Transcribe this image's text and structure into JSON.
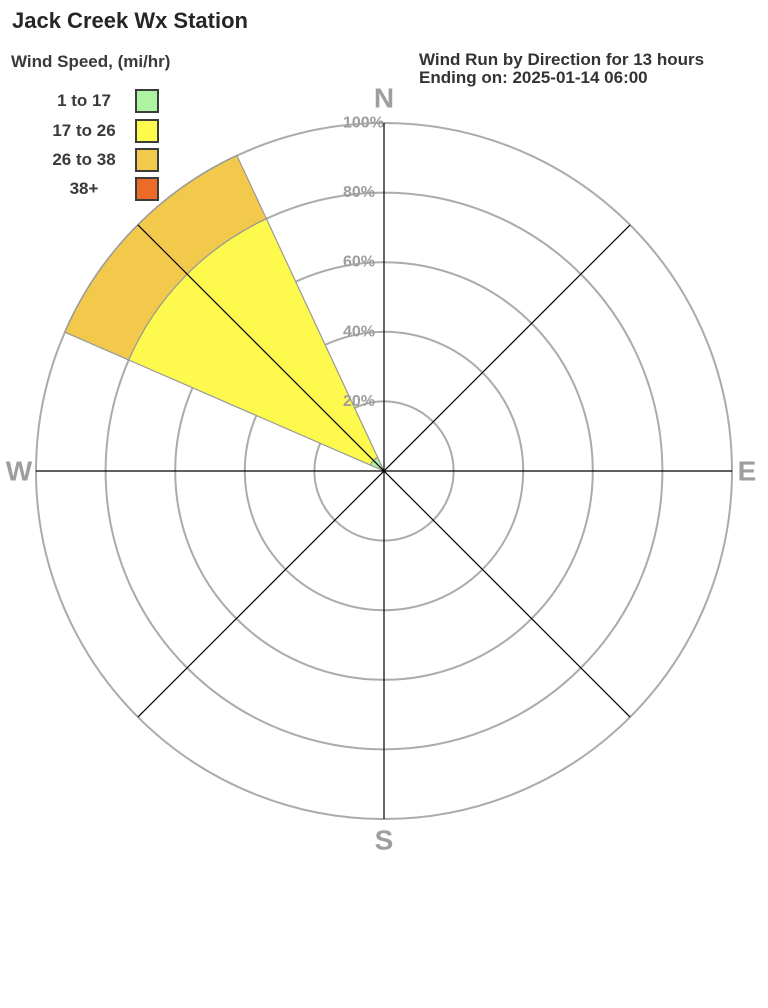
{
  "page": {
    "title": "Jack Creek Wx Station"
  },
  "header": {
    "line1": "Wind Run by Direction for 13 hours",
    "line2": "Ending on: 2025-01-14 06:00"
  },
  "legend": {
    "title": "Wind Speed, (mi/hr)",
    "items": [
      {
        "label": "1 to 17",
        "color": "#aef3a2"
      },
      {
        "label": "17 to 26",
        "color": "#fdf94d"
      },
      {
        "label": "26 to 38",
        "color": "#f2c94b"
      },
      {
        "label": "38+",
        "color": "#ec6b28"
      }
    ]
  },
  "chart_data": {
    "type": "windrose",
    "title": "Jack Creek Wx Station",
    "subtitle": "Wind Run by Direction for 13 hours Ending on: 2025-01-14 06:00",
    "rings": [
      {
        "pct": 20,
        "label": "20%"
      },
      {
        "pct": 40,
        "label": "40%"
      },
      {
        "pct": 60,
        "label": "60%"
      },
      {
        "pct": 80,
        "label": "80%"
      },
      {
        "pct": 100,
        "label": "100%"
      }
    ],
    "compass_labels": {
      "n": "N",
      "e": "E",
      "s": "S",
      "w": "W"
    },
    "grid": {
      "ring_color": "#ababab",
      "axis_color": "#000000",
      "label_color": "#9e9e9e"
    },
    "outline_color": "#999999",
    "sectors": [
      {
        "direction": "NW",
        "from_azimuth_deg": 293.5,
        "to_azimuth_deg": 335.0,
        "bands": [
          {
            "speed": "1 to 17",
            "color": "#aef3a2",
            "from_pct": 0,
            "to_pct": 4.3
          },
          {
            "speed": "17 to 26",
            "color": "#fdf94d",
            "from_pct": 4.3,
            "to_pct": 80
          },
          {
            "speed": "26 to 38",
            "color": "#f2c94b",
            "from_pct": 80,
            "to_pct": 100
          },
          {
            "speed": "38+",
            "color": "#ec6b28",
            "from_pct": 100,
            "to_pct": 100
          }
        ]
      }
    ]
  }
}
